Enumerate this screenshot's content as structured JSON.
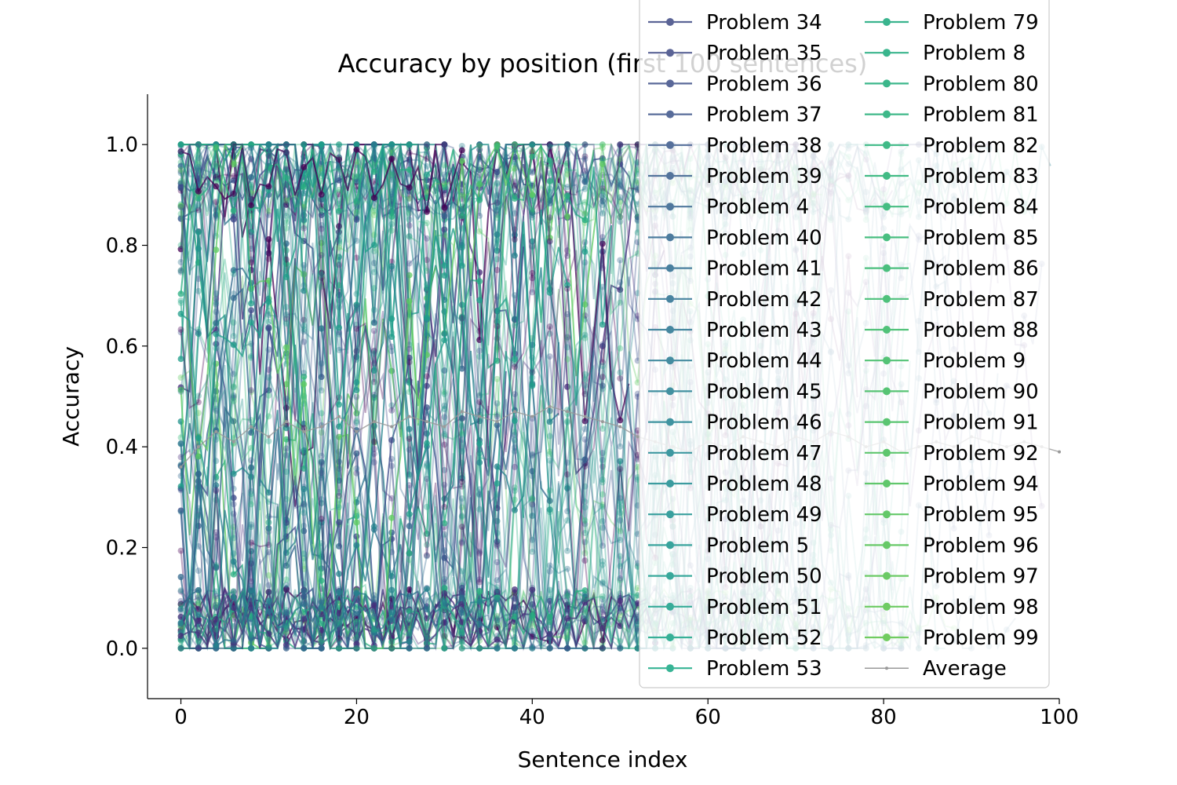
{
  "chart_data": {
    "type": "line",
    "title": "Accuracy by position (first 100 sentences)",
    "xlabel": "Sentence index",
    "ylabel": "Accuracy",
    "xlim": [
      -3.8,
      100
    ],
    "ylim": [
      -0.1,
      1.1
    ],
    "x_ticks": [
      0,
      20,
      40,
      60,
      80,
      100
    ],
    "y_ticks": [
      0.0,
      0.2,
      0.4,
      0.6,
      0.8,
      1.0
    ],
    "y_tick_labels": [
      "0.0",
      "0.2",
      "0.4",
      "0.6",
      "0.8",
      "1.0"
    ],
    "grid": false,
    "legend_placement": "upper-right, two columns",
    "legend_col1": [
      "Problem 34",
      "Problem 35",
      "Problem 36",
      "Problem 37",
      "Problem 38",
      "Problem 39",
      "Problem 4",
      "Problem 40",
      "Problem 41",
      "Problem 42",
      "Problem 43",
      "Problem 44",
      "Problem 45",
      "Problem 46",
      "Problem 47",
      "Problem 48",
      "Problem 49",
      "Problem 5",
      "Problem 50",
      "Problem 51",
      "Problem 52",
      "Problem 53"
    ],
    "legend_col2": [
      "Problem 79",
      "Problem 8",
      "Problem 80",
      "Problem 81",
      "Problem 82",
      "Problem 83",
      "Problem 84",
      "Problem 85",
      "Problem 86",
      "Problem 87",
      "Problem 88",
      "Problem 9",
      "Problem 90",
      "Problem 91",
      "Problem 92",
      "Problem 94",
      "Problem 95",
      "Problem 96",
      "Problem 97",
      "Problem 98",
      "Problem 99",
      "Average"
    ],
    "legend_colors_col1": [
      "#5b6496",
      "#5b6496",
      "#5a6899",
      "#586c9a",
      "#56709b",
      "#53749c",
      "#50789d",
      "#4d7c9e",
      "#4a809f",
      "#4884a0",
      "#4688a0",
      "#448ca0",
      "#4290a0",
      "#4094a0",
      "#3e98a0",
      "#3c9c9f",
      "#3aa09e",
      "#39a49d",
      "#38a89b",
      "#37ac99",
      "#37b097",
      "#37b495"
    ],
    "legend_colors_col2": [
      "#3ab48e",
      "#3ab58d",
      "#3cb78b",
      "#3eb889",
      "#40ba87",
      "#42bb85",
      "#45bd82",
      "#48be80",
      "#4bbf7e",
      "#4ec17b",
      "#51c279",
      "#54c376",
      "#57c474",
      "#5ac571",
      "#5ec66e",
      "#61c76c",
      "#64c869",
      "#67c967",
      "#6aca64",
      "#6dcb62",
      "#70cc60",
      "#999999"
    ],
    "average_series_name": "Average",
    "average": {
      "x": [
        0,
        2,
        4,
        6,
        8,
        10,
        12,
        14,
        16,
        18,
        20,
        22,
        24,
        26,
        28,
        30,
        32,
        34,
        36,
        38,
        40,
        42,
        44,
        46,
        48,
        50,
        52,
        54,
        56,
        58,
        60,
        62,
        64,
        66,
        68,
        70,
        72,
        74,
        76,
        78,
        80,
        82,
        84,
        86,
        88,
        90,
        92,
        94,
        96,
        98,
        100
      ],
      "y": [
        0.36,
        0.4,
        0.43,
        0.41,
        0.44,
        0.42,
        0.45,
        0.43,
        0.44,
        0.46,
        0.43,
        0.45,
        0.44,
        0.46,
        0.45,
        0.44,
        0.47,
        0.46,
        0.45,
        0.47,
        0.46,
        0.48,
        0.47,
        0.46,
        0.45,
        0.44,
        0.42,
        0.41,
        0.4,
        0.39,
        0.41,
        0.4,
        0.42,
        0.41,
        0.4,
        0.42,
        0.41,
        0.43,
        0.42,
        0.4,
        0.41,
        0.39,
        0.4,
        0.41,
        0.4,
        0.42,
        0.41,
        0.4,
        0.41,
        0.4,
        0.39
      ]
    }
  }
}
